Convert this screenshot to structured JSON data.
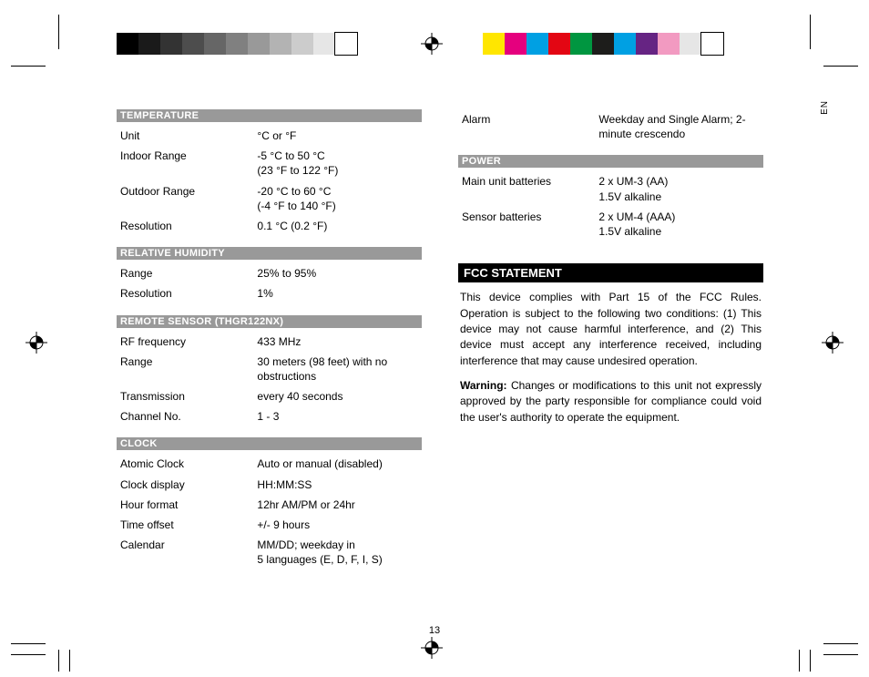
{
  "colorbars": {
    "left": [
      "#000000",
      "#1a1a1a",
      "#333333",
      "#4d4d4d",
      "#666666",
      "#808080",
      "#999999",
      "#b3b3b3",
      "#cccccc",
      "#e6e6e6",
      "#ffffff"
    ],
    "right": [
      "#ffe600",
      "#e5007e",
      "#00a0e3",
      "#e30613",
      "#009640",
      "#1d1d1b",
      "#00a0e3",
      "#662483",
      "#f29ac1",
      "#e6e6e6",
      "#ffffff"
    ]
  },
  "sideLabel": "EN",
  "pageNumber": "13",
  "leftCol": {
    "sections": [
      {
        "title": "TEMPERATURE",
        "rows": [
          {
            "label": "Unit",
            "value": "°C or °F"
          },
          {
            "label": "Indoor Range",
            "value": "-5 °C to 50 °C\n(23 °F to 122 °F)"
          },
          {
            "label": "Outdoor Range",
            "value": "-20 °C to 60 °C\n(-4 °F to 140 °F)"
          },
          {
            "label": "Resolution",
            "value": "0.1 °C (0.2 °F)"
          }
        ]
      },
      {
        "title": "RELATIVE HUMIDITY",
        "rows": [
          {
            "label": "Range",
            "value": "25% to 95%"
          },
          {
            "label": "Resolution",
            "value": "1%"
          }
        ]
      },
      {
        "title": "REMOTE SENSOR (THGR122NX)",
        "rows": [
          {
            "label": "RF frequency",
            "value": "433 MHz"
          },
          {
            "label": "Range",
            "value": "30 meters (98 feet) with no obstructions"
          },
          {
            "label": "Transmission",
            "value": "every 40 seconds"
          },
          {
            "label": "Channel No.",
            "value": "1 - 3"
          }
        ]
      },
      {
        "title": "CLOCK",
        "rows": [
          {
            "label": "Atomic Clock",
            "value": "Auto or manual (disabled)"
          },
          {
            "label": "Clock display",
            "value": "HH:MM:SS"
          },
          {
            "label": "Hour format",
            "value": "12hr AM/PM or 24hr"
          },
          {
            "label": "Time offset",
            "value": "+/- 9 hours"
          },
          {
            "label": "Calendar",
            "value": "MM/DD; weekday in\n5 languages (E, D, F, I, S)"
          }
        ]
      }
    ]
  },
  "rightCol": {
    "looseRows": [
      {
        "label": "Alarm",
        "value": "Weekday and Single Alarm; 2- minute crescendo"
      }
    ],
    "sections": [
      {
        "title": "POWER",
        "rows": [
          {
            "label": "Main unit batteries",
            "value": "2 x UM-3 (AA)\n1.5V alkaline"
          },
          {
            "label": "Sensor batteries",
            "value": "2 x UM-4 (AAA)\n1.5V alkaline"
          }
        ]
      }
    ],
    "fcc": {
      "title": "FCC STATEMENT",
      "p1": "This device complies with Part 15 of the FCC Rules. Operation is subject to the following two conditions: (1) This device may not cause harmful interference, and (2) This device must accept any interference received, including interference that may cause undesired operation.",
      "p2label": "Warning:",
      "p2": " Changes or modifications to this unit not expressly approved by the party responsible for compliance could void the user's authority to operate the equipment."
    }
  }
}
